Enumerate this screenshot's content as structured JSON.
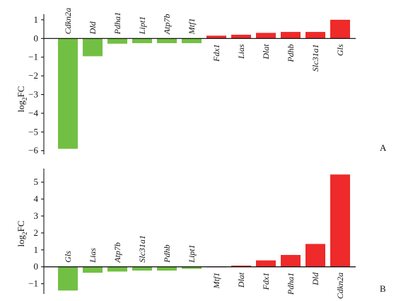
{
  "chart_data": [
    {
      "type": "bar",
      "panel_label": "A",
      "ylabel_main": "log",
      "ylabel_sub": "2",
      "ylabel_suffix": "FC",
      "ylim": [
        -6.2,
        1.3
      ],
      "yticks": [
        1,
        0,
        -1,
        -2,
        -3,
        -4,
        -5,
        -6
      ],
      "categories": [
        "Cdkn2a",
        "Dld",
        "Pdha1",
        "Lipt1",
        "Atp7b",
        "Mtf1",
        "Fdx1",
        "Lias",
        "Dlat",
        "Pdhb",
        "Slc31a1",
        "Gls"
      ],
      "values": [
        -5.9,
        -0.95,
        -0.28,
        -0.25,
        -0.25,
        -0.25,
        0.15,
        0.2,
        0.3,
        0.35,
        0.35,
        1.0
      ],
      "colors": {
        "negative": "#72c043",
        "positive": "#ee2a2a"
      }
    },
    {
      "type": "bar",
      "panel_label": "B",
      "ylabel_main": "log",
      "ylabel_sub": "2",
      "ylabel_suffix": "FC",
      "ylim": [
        -1.6,
        5.8
      ],
      "yticks": [
        5,
        4,
        3,
        2,
        1,
        0,
        -1
      ],
      "categories": [
        "Gls",
        "Lias",
        "Atp7b",
        "Slc31a1",
        "Pdhb",
        "Lipt1",
        "Mtf1",
        "Dlat",
        "Fdx1",
        "Pdha1",
        "Dld",
        "Cdkn2a"
      ],
      "values": [
        -1.4,
        -0.35,
        -0.28,
        -0.22,
        -0.22,
        -0.12,
        0.02,
        0.07,
        0.38,
        0.7,
        1.35,
        5.45
      ],
      "colors": {
        "negative": "#72c043",
        "positive": "#ee2a2a"
      }
    }
  ]
}
